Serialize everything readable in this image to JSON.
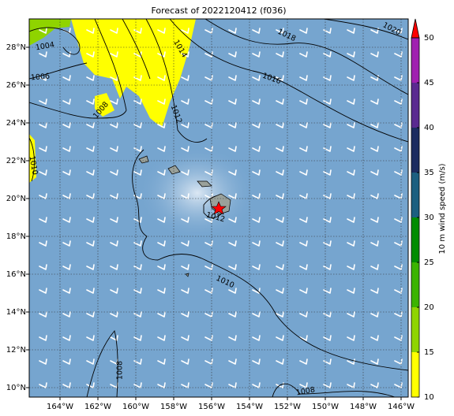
{
  "title": "Forecast of 2022120412 (f036)",
  "lon_labels": [
    "164°W",
    "162°W",
    "160°W",
    "158°W",
    "156°W",
    "154°W",
    "152°W",
    "150°W",
    "148°W",
    "146°W"
  ],
  "lat_labels": [
    "28°N",
    "26°N",
    "24°N",
    "22°N",
    "20°N",
    "18°N",
    "16°N",
    "14°N",
    "12°N",
    "10°N"
  ],
  "contour_labels": [
    "1020",
    "1018",
    "1016",
    "1014",
    "1012",
    "1004",
    "1006",
    "1008",
    "1010",
    "1012",
    "1010",
    "1008",
    "1008"
  ],
  "colorbar": {
    "label": "10 m wind speed (m/s)",
    "range": [
      10,
      50
    ],
    "ticks": [
      10,
      15,
      20,
      25,
      30,
      35,
      40,
      45,
      50
    ],
    "colors": [
      "#ffff00",
      "#8fd400",
      "#3cb400",
      "#008c00",
      "#1c5f80",
      "#1c2c60",
      "#5a2a90",
      "#a020b0"
    ],
    "over_color": "#ff0000"
  }
}
